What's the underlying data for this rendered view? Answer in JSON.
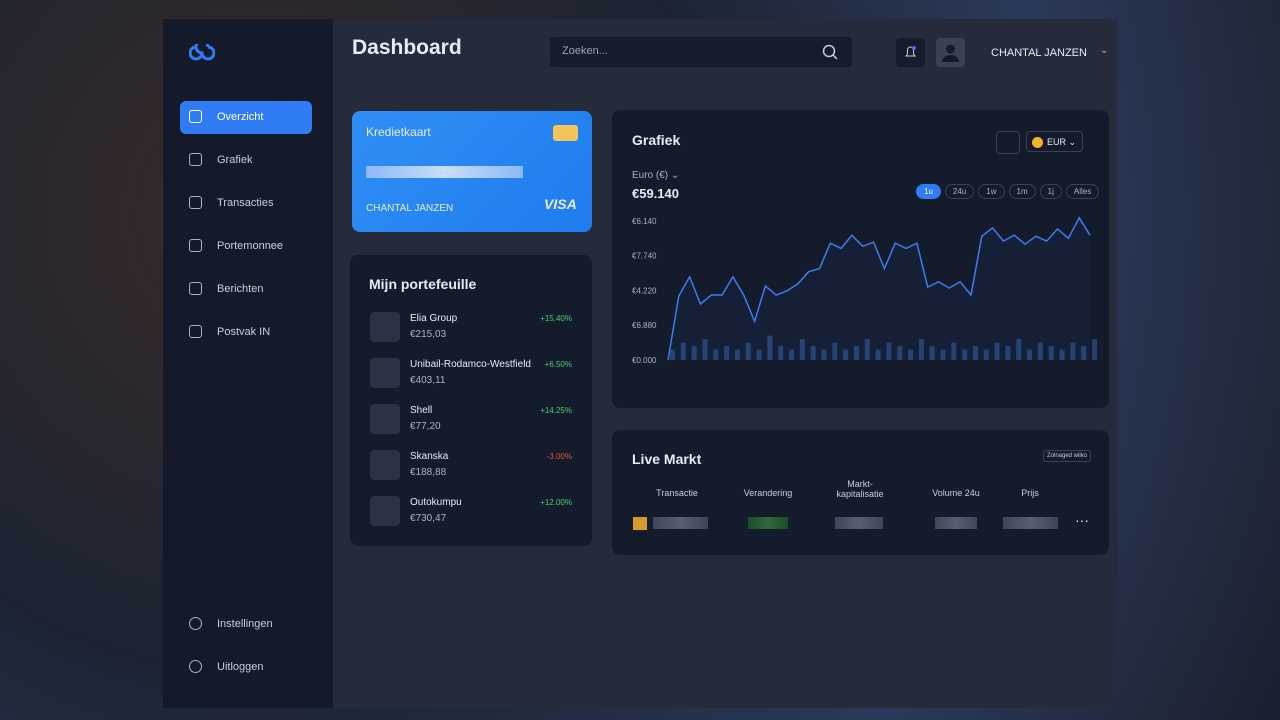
{
  "sidebar": {
    "items": [
      "Overzicht",
      "Grafiek",
      "Transacties",
      "Portemonnee",
      "Berichten",
      "Postvak IN"
    ],
    "bottom": [
      "Instellingen",
      "Uitloggen"
    ]
  },
  "header": {
    "title": "Dashboard",
    "search_placeholder": "Zoeken...",
    "user": "CHANTAL JANZEN"
  },
  "card": {
    "title": "Kredietkaart",
    "holder": "CHANTAL JANZEN",
    "brand": "VISA"
  },
  "portfolio": {
    "title": "Mijn portefeuille",
    "items": [
      {
        "name": "Elia Group",
        "price": "€215,03",
        "change": "+15.40%"
      },
      {
        "name": "Unibail-Rodamco-Westfield",
        "price": "€403,11",
        "change": "+6.50%"
      },
      {
        "name": "Shell",
        "price": "€77,20",
        "change": "+14.25%"
      },
      {
        "name": "Skanska",
        "price": "€188,88",
        "change": "-3.00%"
      },
      {
        "name": "Outokumpu",
        "price": "€730,47",
        "change": "+12.00%"
      }
    ]
  },
  "grafiek": {
    "title": "Grafiek",
    "currency": "EUR",
    "unit": "Euro (€)",
    "total": "€59.140",
    "ranges": [
      "1u",
      "24u",
      "1w",
      "1m",
      "1j",
      "Alles"
    ]
  },
  "chart_data": {
    "type": "line",
    "color": "#3b7cf0",
    "volume_color": "#26406e",
    "values": [
      0,
      1.84,
      2.39,
      1.61,
      1.87,
      1.87,
      2.39,
      1.87,
      1.11,
      2.13,
      1.87,
      1.99,
      2.19,
      2.54,
      2.63,
      3.36,
      3.21,
      3.59,
      3.27,
      3.39,
      2.63,
      3.36,
      3.21,
      3.36,
      2.1,
      2.25,
      2.07,
      2.25,
      1.87,
      3.56,
      3.8,
      3.42,
      3.59,
      3.33,
      3.56,
      3.42,
      3.77,
      3.5,
      4.09,
      3.59
    ],
    "volume": [
      0.3,
      0.5,
      0.4,
      0.6,
      0.3,
      0.4,
      0.3,
      0.5,
      0.3,
      0.7,
      0.4,
      0.3,
      0.6,
      0.4,
      0.3,
      0.5,
      0.3,
      0.4,
      0.6,
      0.3,
      0.5,
      0.4,
      0.3,
      0.6,
      0.4,
      0.3,
      0.5,
      0.3,
      0.4,
      0.3,
      0.5,
      0.4,
      0.6,
      0.3,
      0.5,
      0.4,
      0.3,
      0.5,
      0.4,
      0.6
    ],
    "ylim": [
      0,
      4.2
    ],
    "yticks": [
      {
        "value": 4,
        "label": "€6.140"
      },
      {
        "value": 3,
        "label": "€7.740"
      },
      {
        "value": 2,
        "label": "€4.220"
      },
      {
        "value": 1,
        "label": "€6.880"
      },
      {
        "value": 0,
        "label": "€0.000"
      }
    ]
  },
  "market": {
    "title": "Live Markt",
    "filter": "Zolnaged wiiko",
    "columns": [
      "Transactie",
      "Verandering",
      "Markt-kapitalisatie",
      "Volume 24u",
      "Prijs"
    ]
  }
}
